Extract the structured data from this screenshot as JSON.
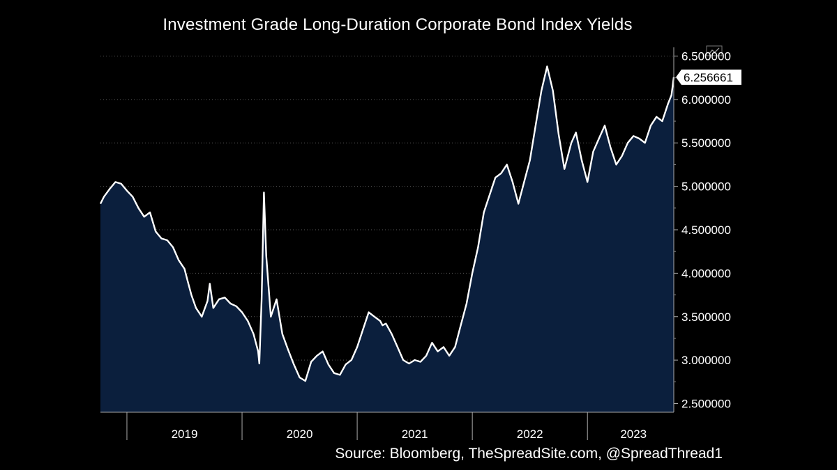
{
  "chart_data": {
    "type": "area",
    "title": "Investment Grade Long-Duration Corporate Bond Index Yields",
    "source": "Source: Bloomberg, TheSpreadSite.com, @SpreadThread1",
    "xlabel": "",
    "ylabel": "",
    "xlim": [
      2018.77,
      2023.75
    ],
    "ylim": [
      2.4,
      6.6
    ],
    "grid": true,
    "grid_style": "dotted horizontal",
    "y_ticks": [
      2.5,
      3.0,
      3.5,
      4.0,
      4.5,
      5.0,
      5.5,
      6.0,
      6.5
    ],
    "y_tick_labels": [
      "2.500000",
      "3.000000",
      "3.500000",
      "4.000000",
      "4.500000",
      "5.000000",
      "5.500000",
      "6.000000",
      "6.500000"
    ],
    "x_year_labels": [
      "2019",
      "2020",
      "2021",
      "2022",
      "2023"
    ],
    "x_year_label_positions": [
      2019.5,
      2020.5,
      2021.5,
      2022.5,
      2023.4
    ],
    "x_year_boundaries": [
      2019.0,
      2020.0,
      2021.0,
      2022.0,
      2023.0
    ],
    "last_value_label": "6.256661",
    "last_value": 6.2567,
    "colors": {
      "background": "#000000",
      "line": "#ffffff",
      "area_fill": "#0b1f3d",
      "grid": "#5a5a5a",
      "text": "#ffffff"
    },
    "series": [
      {
        "name": "Investment Grade Long-Duration Corporate Bond Index Yield",
        "x": [
          2018.77,
          2018.8,
          2018.85,
          2018.9,
          2018.95,
          2019.0,
          2019.05,
          2019.1,
          2019.15,
          2019.2,
          2019.25,
          2019.3,
          2019.35,
          2019.4,
          2019.45,
          2019.5,
          2019.53,
          2019.56,
          2019.6,
          2019.65,
          2019.7,
          2019.72,
          2019.75,
          2019.8,
          2019.85,
          2019.9,
          2019.95,
          2020.0,
          2020.05,
          2020.1,
          2020.14,
          2020.15,
          2020.17,
          2020.19,
          2020.21,
          2020.23,
          2020.25,
          2020.3,
          2020.35,
          2020.4,
          2020.45,
          2020.5,
          2020.55,
          2020.6,
          2020.65,
          2020.7,
          2020.75,
          2020.8,
          2020.85,
          2020.9,
          2020.95,
          2021.0,
          2021.05,
          2021.1,
          2021.15,
          2021.2,
          2021.22,
          2021.25,
          2021.3,
          2021.35,
          2021.4,
          2021.45,
          2021.5,
          2021.55,
          2021.6,
          2021.65,
          2021.7,
          2021.75,
          2021.8,
          2021.85,
          2021.9,
          2021.95,
          2022.0,
          2022.05,
          2022.1,
          2022.15,
          2022.2,
          2022.25,
          2022.3,
          2022.35,
          2022.4,
          2022.45,
          2022.5,
          2022.55,
          2022.6,
          2022.65,
          2022.7,
          2022.75,
          2022.8,
          2022.83,
          2022.86,
          2022.9,
          2022.95,
          2023.0,
          2023.05,
          2023.1,
          2023.15,
          2023.2,
          2023.25,
          2023.3,
          2023.35,
          2023.4,
          2023.45,
          2023.5,
          2023.55,
          2023.6,
          2023.65,
          2023.7,
          2023.73,
          2023.75
        ],
        "values": [
          4.8,
          4.88,
          4.97,
          5.05,
          5.03,
          4.95,
          4.88,
          4.75,
          4.65,
          4.7,
          4.48,
          4.4,
          4.38,
          4.3,
          4.15,
          4.05,
          3.9,
          3.75,
          3.6,
          3.5,
          3.68,
          3.88,
          3.6,
          3.7,
          3.72,
          3.65,
          3.62,
          3.55,
          3.45,
          3.3,
          3.1,
          2.96,
          3.7,
          4.93,
          4.2,
          3.85,
          3.5,
          3.7,
          3.3,
          3.12,
          2.95,
          2.8,
          2.76,
          2.98,
          3.05,
          3.1,
          2.95,
          2.85,
          2.83,
          2.95,
          3.0,
          3.15,
          3.35,
          3.55,
          3.5,
          3.45,
          3.4,
          3.42,
          3.3,
          3.15,
          3.0,
          2.96,
          3.0,
          2.98,
          3.05,
          3.2,
          3.1,
          3.15,
          3.05,
          3.15,
          3.4,
          3.65,
          4.0,
          4.3,
          4.7,
          4.9,
          5.1,
          5.15,
          5.25,
          5.05,
          4.8,
          5.05,
          5.3,
          5.7,
          6.1,
          6.38,
          6.1,
          5.6,
          5.2,
          5.35,
          5.5,
          5.62,
          5.3,
          5.05,
          5.4,
          5.55,
          5.7,
          5.45,
          5.25,
          5.35,
          5.5,
          5.58,
          5.55,
          5.5,
          5.7,
          5.8,
          5.75,
          5.95,
          6.05,
          6.2567
        ]
      }
    ]
  }
}
